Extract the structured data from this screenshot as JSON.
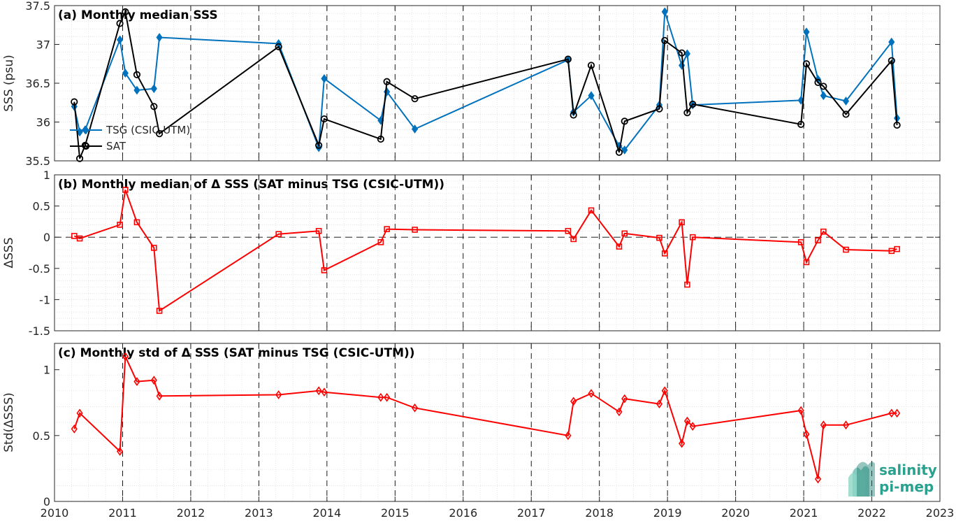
{
  "chart_data": [
    {
      "type": "line",
      "title": "(a) Monthly median SSS",
      "xlabel": "",
      "ylabel": "SSS (psu)",
      "xlim": [
        2010,
        2023
      ],
      "ylim": [
        35.5,
        37.5
      ],
      "yticks": [
        35.5,
        36,
        36.5,
        37,
        37.5
      ],
      "ytick_labels": [
        "35.5",
        "36",
        "36.5",
        "37",
        "37.5"
      ],
      "grid": true,
      "legend_position": "middle-left",
      "series": [
        {
          "name": "TSG (CSIC-UTM)",
          "color": "#0072bd",
          "marker": "diamond",
          "x": [
            2010.29,
            2010.37,
            2010.45,
            2010.96,
            2011.04,
            2011.21,
            2011.46,
            2011.54,
            2013.29,
            2013.88,
            2013.96,
            2014.79,
            2014.88,
            2015.29,
            2017.54,
            2017.62,
            2017.88,
            2018.29,
            2018.37,
            2018.88,
            2018.96,
            2019.21,
            2019.29,
            2019.37,
            2020.96,
            2021.04,
            2021.21,
            2021.29,
            2021.62,
            2022.29,
            2022.37
          ],
          "y": [
            36.2,
            35.87,
            35.9,
            37.06,
            36.63,
            36.41,
            36.43,
            37.09,
            37.01,
            35.67,
            36.56,
            36.02,
            36.39,
            35.91,
            36.8,
            36.13,
            36.34,
            35.69,
            35.64,
            36.22,
            37.42,
            36.73,
            36.88,
            36.22,
            36.28,
            37.16,
            36.55,
            36.34,
            36.27,
            37.03,
            36.05
          ]
        },
        {
          "name": "SAT",
          "color": "#000000",
          "marker": "circle",
          "x": [
            2010.29,
            2010.37,
            2010.45,
            2010.96,
            2011.04,
            2011.21,
            2011.46,
            2011.54,
            2013.29,
            2013.88,
            2013.96,
            2014.79,
            2014.88,
            2015.29,
            2017.54,
            2017.62,
            2017.88,
            2018.29,
            2018.37,
            2018.88,
            2018.96,
            2019.21,
            2019.29,
            2019.37,
            2020.96,
            2021.04,
            2021.21,
            2021.29,
            2021.62,
            2022.29,
            2022.37
          ],
          "y": [
            36.26,
            35.53,
            35.7,
            37.27,
            37.42,
            36.61,
            36.2,
            35.85,
            36.97,
            35.7,
            36.04,
            35.78,
            36.52,
            36.3,
            36.81,
            36.09,
            36.73,
            35.61,
            36.01,
            36.17,
            37.05,
            36.89,
            36.12,
            36.23,
            35.97,
            36.75,
            36.51,
            36.46,
            36.1,
            36.79,
            35.96
          ]
        }
      ]
    },
    {
      "type": "line",
      "title": "(b) Monthly median of Δ SSS (SAT minus TSG (CSIC-UTM))",
      "xlabel": "",
      "ylabel": "ΔSSS",
      "xlim": [
        2010,
        2023
      ],
      "ylim": [
        -1.5,
        1
      ],
      "yticks": [
        -1.5,
        -1,
        -0.5,
        0,
        0.5,
        1
      ],
      "ytick_labels": [
        "-1.5",
        "-1",
        "-0.5",
        "0",
        "0.5",
        "1"
      ],
      "grid": true,
      "zero_line": true,
      "series": [
        {
          "name": "",
          "color": "#ff0000",
          "marker": "square",
          "x": [
            2010.29,
            2010.37,
            2010.96,
            2011.04,
            2011.21,
            2011.46,
            2011.54,
            2013.29,
            2013.88,
            2013.96,
            2014.79,
            2014.88,
            2015.29,
            2017.54,
            2017.62,
            2017.88,
            2018.29,
            2018.37,
            2018.88,
            2018.96,
            2019.21,
            2019.29,
            2019.37,
            2020.96,
            2021.04,
            2021.21,
            2021.29,
            2021.62,
            2022.29,
            2022.37
          ],
          "y": [
            0.02,
            -0.02,
            0.2,
            0.76,
            0.24,
            -0.17,
            -1.18,
            0.05,
            0.1,
            -0.53,
            -0.08,
            0.13,
            0.12,
            0.1,
            -0.03,
            0.43,
            -0.15,
            0.06,
            -0.01,
            -0.26,
            0.24,
            -0.76,
            0.0,
            -0.08,
            -0.4,
            -0.05,
            0.09,
            -0.2,
            -0.22,
            -0.19
          ]
        }
      ]
    },
    {
      "type": "line",
      "title": "(c) Monthly std of Δ SSS (SAT minus TSG (CSIC-UTM))",
      "xlabel": "",
      "ylabel": "Std(ΔSSS)",
      "xlim": [
        2010,
        2023
      ],
      "ylim": [
        0,
        1.2
      ],
      "yticks": [
        0,
        0.5,
        1
      ],
      "ytick_labels": [
        "0",
        "0.5",
        "1"
      ],
      "xticks": [
        2010,
        2011,
        2012,
        2013,
        2014,
        2015,
        2016,
        2017,
        2018,
        2019,
        2020,
        2021,
        2022,
        2023
      ],
      "xtick_labels": [
        "2010",
        "2011",
        "2012",
        "2013",
        "2014",
        "2015",
        "2016",
        "2017",
        "2018",
        "2019",
        "2020",
        "2021",
        "2022",
        "2023"
      ],
      "grid": true,
      "series": [
        {
          "name": "",
          "color": "#ff0000",
          "marker": "diamond",
          "x": [
            2010.29,
            2010.37,
            2010.96,
            2011.04,
            2011.21,
            2011.46,
            2011.54,
            2013.29,
            2013.88,
            2013.96,
            2014.79,
            2014.88,
            2015.29,
            2017.54,
            2017.62,
            2017.88,
            2018.29,
            2018.37,
            2018.88,
            2018.96,
            2019.21,
            2019.29,
            2019.37,
            2020.96,
            2021.04,
            2021.21,
            2021.29,
            2021.62,
            2022.29,
            2022.37
          ],
          "y": [
            0.55,
            0.67,
            0.38,
            1.1,
            0.91,
            0.92,
            0.8,
            0.81,
            0.84,
            0.83,
            0.79,
            0.79,
            0.71,
            0.5,
            0.76,
            0.82,
            0.68,
            0.78,
            0.74,
            0.84,
            0.44,
            0.61,
            0.57,
            0.69,
            0.51,
            0.17,
            0.58,
            0.58,
            0.67,
            0.67
          ]
        }
      ]
    }
  ],
  "logo": {
    "line1": "salinity",
    "line2": "pi-mep"
  }
}
